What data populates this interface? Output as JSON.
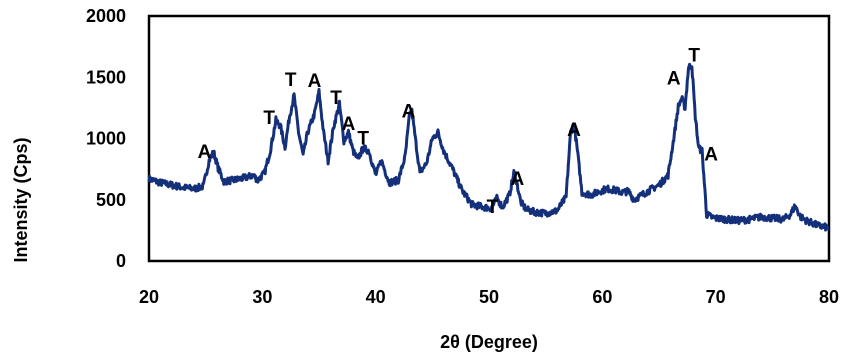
{
  "chart_data": {
    "type": "line",
    "title": "",
    "xlabel": "2θ (Degree)",
    "ylabel": "Intensity (Cps)",
    "xlim": [
      20,
      80
    ],
    "ylim": [
      0,
      2000
    ],
    "xticks": [
      "20",
      "30",
      "40",
      "50",
      "60",
      "70",
      "80"
    ],
    "yticks": [
      "0",
      "500",
      "1000",
      "1500",
      "2000"
    ],
    "grid": false,
    "line_color": "#14307a",
    "series": [
      {
        "name": "",
        "x": [
          20,
          21,
          22,
          23,
          24,
          24.8,
          25.3,
          25.7,
          26.1,
          26.6,
          27.5,
          28.5,
          29.2,
          29.6,
          30.2,
          30.7,
          31.2,
          31.6,
          32.0,
          32.4,
          32.8,
          33.2,
          33.6,
          34.0,
          34.6,
          35.0,
          35.4,
          35.8,
          36.3,
          36.8,
          37.2,
          37.6,
          38.0,
          38.4,
          38.9,
          39.4,
          40.0,
          40.5,
          41.2,
          42.0,
          42.6,
          43.0,
          43.2,
          43.5,
          43.9,
          44.5,
          45.0,
          45.5,
          46.0,
          46.8,
          47.6,
          48.5,
          49.5,
          50.2,
          50.7,
          51.2,
          51.8,
          52.2,
          52.5,
          52.8,
          53.3,
          54.0,
          55.0,
          56.0,
          56.8,
          57.2,
          57.5,
          57.8,
          58.2,
          59.0,
          59.8,
          60.4,
          61.0,
          61.8,
          62.3,
          62.8,
          63.5,
          64.2,
          65.0,
          65.8,
          66.3,
          66.7,
          67.0,
          67.3,
          67.6,
          67.9,
          68.2,
          68.5,
          68.8,
          69.2,
          69.6,
          70.0,
          71.0,
          72.0,
          73.0,
          74.0,
          75.0,
          76.0,
          76.6,
          77.0,
          77.5,
          78.0,
          79.0,
          80.0
        ],
        "values": [
          670,
          640,
          620,
          600,
          590,
          610,
          820,
          890,
          760,
          650,
          660,
          680,
          700,
          660,
          720,
          900,
          1150,
          1100,
          930,
          1180,
          1350,
          1050,
          860,
          1050,
          1200,
          1380,
          1050,
          820,
          1100,
          1280,
          980,
          1050,
          900,
          830,
          920,
          900,
          700,
          820,
          640,
          660,
          850,
          1200,
          1220,
          1000,
          720,
          800,
          1000,
          1050,
          900,
          750,
          580,
          460,
          440,
          430,
          510,
          440,
          540,
          720,
          620,
          480,
          420,
          400,
          390,
          410,
          520,
          1050,
          1120,
          900,
          560,
          540,
          570,
          590,
          580,
          560,
          570,
          500,
          540,
          580,
          620,
          700,
          1000,
          1260,
          1330,
          1250,
          1580,
          1600,
          1180,
          920,
          900,
          380,
          360,
          350,
          340,
          330,
          340,
          360,
          350,
          340,
          380,
          450,
          360,
          330,
          290,
          270
        ]
      }
    ],
    "annotations": [
      {
        "text": "A",
        "x": 24.9,
        "y": 840
      },
      {
        "text": "T",
        "x": 30.6,
        "y": 1120
      },
      {
        "text": "T",
        "x": 32.5,
        "y": 1430
      },
      {
        "text": "A",
        "x": 34.6,
        "y": 1420
      },
      {
        "text": "T",
        "x": 36.5,
        "y": 1280
      },
      {
        "text": "A",
        "x": 37.6,
        "y": 1070
      },
      {
        "text": "T",
        "x": 38.9,
        "y": 950
      },
      {
        "text": "A",
        "x": 42.9,
        "y": 1170
      },
      {
        "text": "T",
        "x": 50.3,
        "y": 390
      },
      {
        "text": "A",
        "x": 52.5,
        "y": 620
      },
      {
        "text": "A",
        "x": 57.5,
        "y": 1020
      },
      {
        "text": "A",
        "x": 66.3,
        "y": 1440
      },
      {
        "text": "T",
        "x": 68.1,
        "y": 1630
      },
      {
        "text": "A",
        "x": 69.6,
        "y": 820
      }
    ]
  }
}
